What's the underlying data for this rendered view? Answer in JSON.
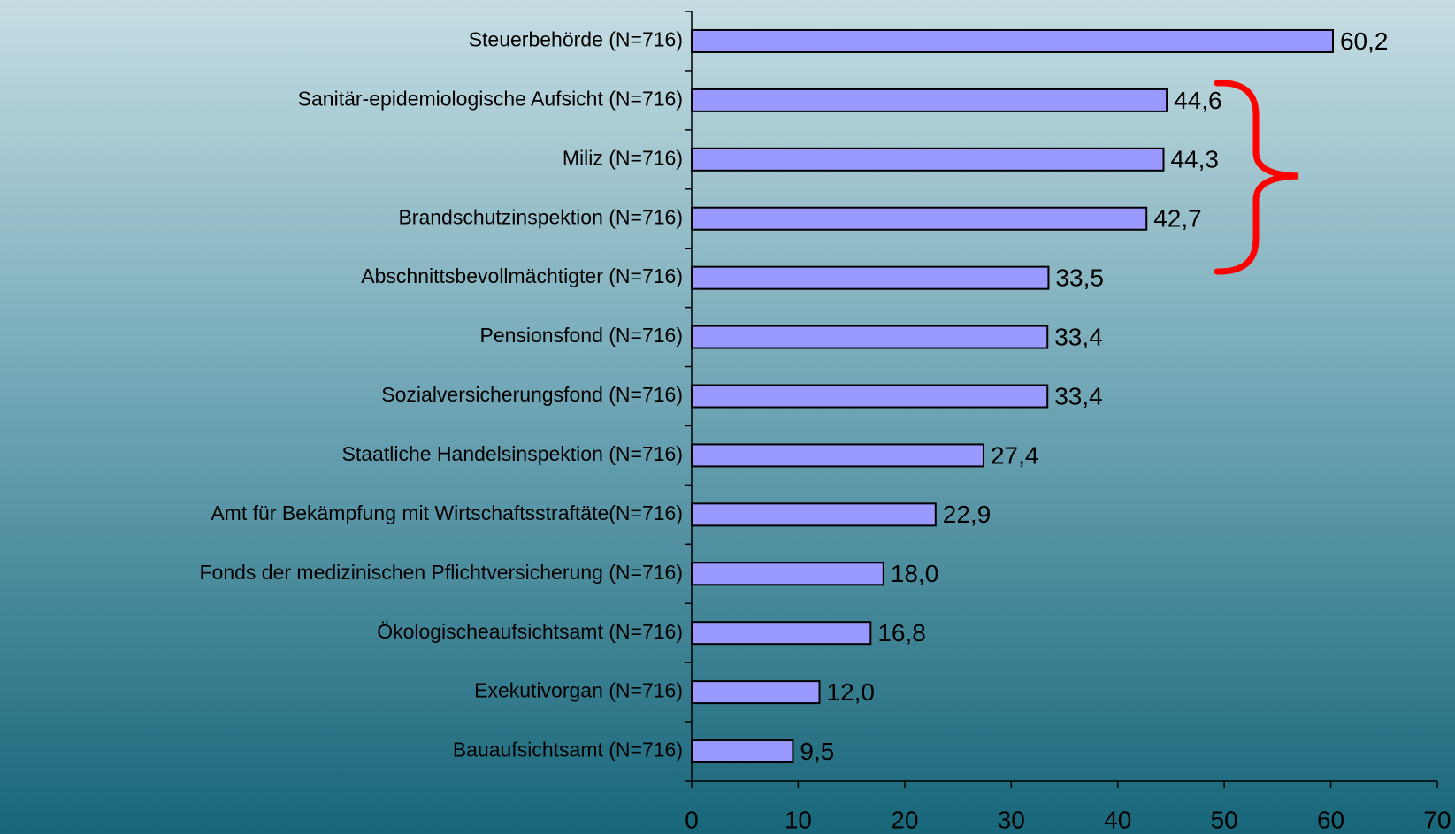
{
  "chart_data": {
    "type": "bar",
    "orientation": "horizontal",
    "categories": [
      "Steuerbehörde (N=716)",
      "Sanitär-epidemiologische Aufsicht (N=716)",
      "Miliz (N=716)",
      "Brandschutzinspektion (N=716)",
      "Abschnittsbevollmächtigter (N=716)",
      "Pensionsfond (N=716)",
      "Sozialversicherungsfond (N=716)",
      "Staatliche Handelsinspektion (N=716)",
      "Amt für Bekämpfung mit Wirtschaftsstraftäte(N=716)",
      "Fonds der medizinischen Pflichtversicherung (N=716)",
      "Ökologischeaufsichtsamt (N=716)",
      "Exekutivorgan (N=716)",
      "Bauaufsichtsamt (N=716)"
    ],
    "values": [
      60.2,
      44.6,
      44.3,
      42.7,
      33.5,
      33.4,
      33.4,
      27.4,
      22.9,
      18.0,
      16.8,
      12.0,
      9.5
    ],
    "value_labels": [
      "60,2",
      "44,6",
      "44,3",
      "42,7",
      "33,5",
      "33,4",
      "33,4",
      "27,4",
      "22,9",
      "18,0",
      "16,8",
      "12,0",
      "9,5"
    ],
    "color": "#9999ff",
    "xlim": [
      0,
      70
    ],
    "xticks": [
      0,
      10,
      20,
      30,
      40,
      50,
      60,
      70
    ]
  }
}
